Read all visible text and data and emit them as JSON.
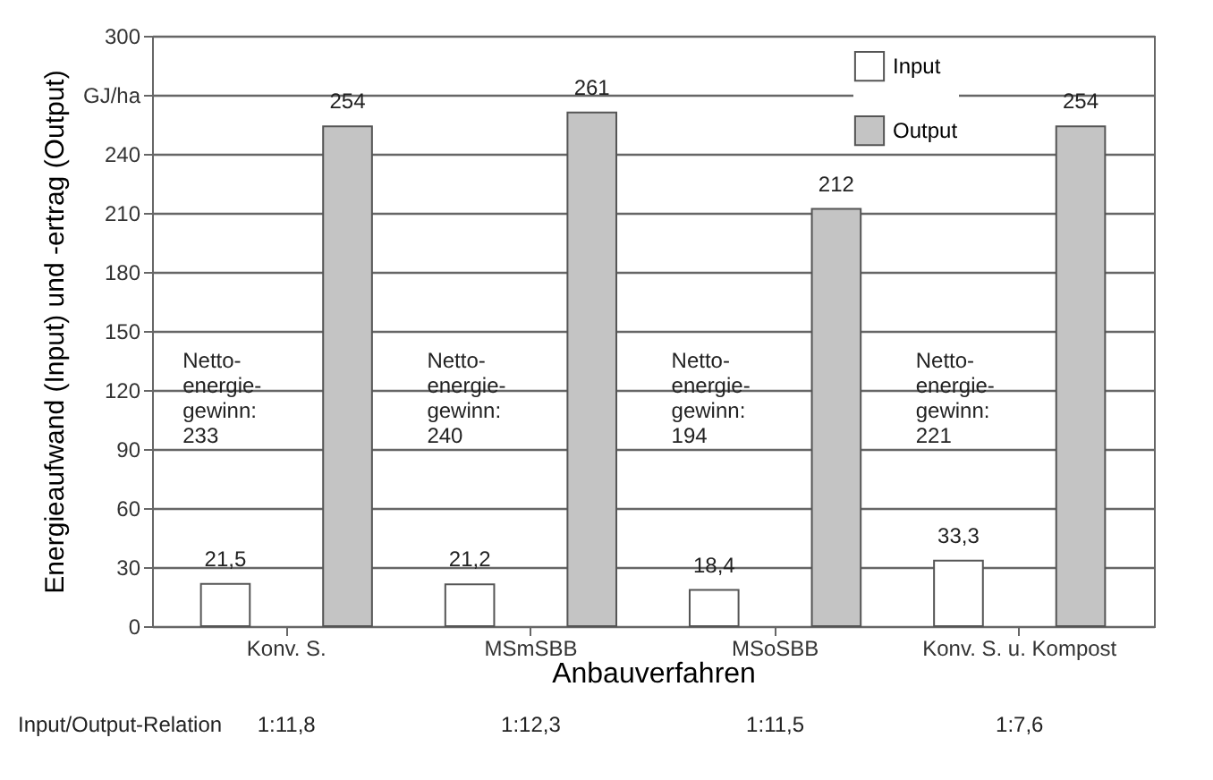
{
  "chart_data": {
    "type": "bar",
    "ylabel": "Energieaufwand (Input) und -ertrag (Output)",
    "xlabel": "Anbauverfahren",
    "categories": [
      "Konv. S.",
      "MSmSBB",
      "MSoSBB",
      "Konv. S. u. Kompost"
    ],
    "series": [
      {
        "name": "Input",
        "color": "#ffffff",
        "values": [
          21.5,
          21.2,
          18.4,
          33.3
        ],
        "value_labels": [
          "21,5",
          "21,2",
          "18,4",
          "33,3"
        ]
      },
      {
        "name": "Output",
        "color": "#c4c4c4",
        "values": [
          254,
          261,
          212,
          254
        ],
        "value_labels": [
          "254",
          "261",
          "212",
          "254"
        ]
      }
    ],
    "ylim": [
      0,
      300
    ],
    "yticks": [
      0,
      30,
      60,
      90,
      120,
      150,
      180,
      210,
      240,
      {
        "value": 270,
        "label": "GJ/ha"
      },
      300
    ],
    "grid": "y",
    "legend": "top right",
    "annotations": [
      "Netto-\nenergie-\ngewinn:\n233",
      "Netto-\nenergie-\ngewinn:\n240",
      "Netto-\nenergie-\ngewinn:\n194",
      "Netto-\nenergie-\ngewinn:\n221",
      "Input/Output-Relation",
      "1:11,8",
      "1:12,3",
      "1:11,5",
      "1:7,6"
    ]
  }
}
